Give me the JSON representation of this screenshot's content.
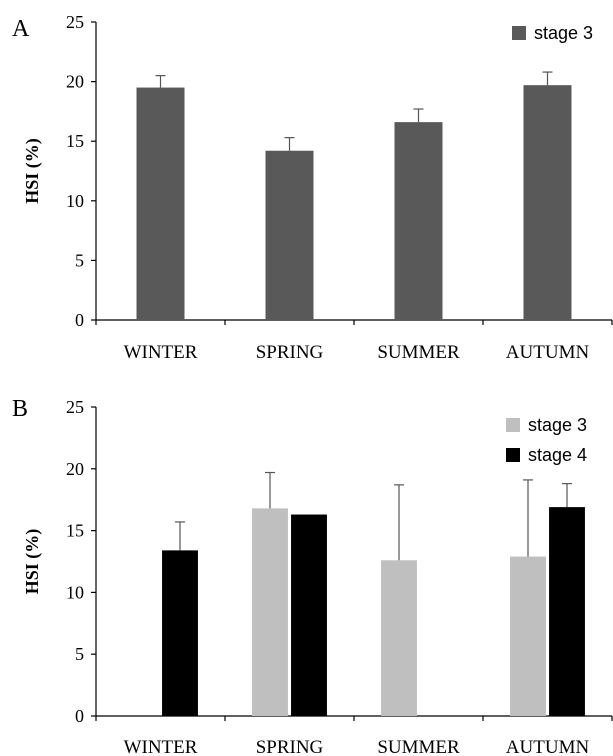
{
  "chart_data": [
    {
      "panel_label": "A",
      "type": "bar",
      "categories": [
        "WINTER",
        "SPRING",
        "SUMMER",
        "AUTUMN"
      ],
      "series": [
        {
          "name": "stage 3",
          "color": "#595959",
          "values": [
            19.5,
            14.2,
            16.6,
            19.7
          ],
          "errors": [
            1.0,
            1.1,
            1.1,
            1.1
          ]
        }
      ],
      "ylabel": "HSI (%)",
      "ylim": [
        0,
        25
      ],
      "yticks": [
        0,
        5,
        10,
        15,
        20,
        25
      ],
      "grid": false,
      "legend": "top-right"
    },
    {
      "panel_label": "B",
      "type": "bar",
      "categories": [
        "WINTER",
        "SPRING",
        "SUMMER",
        "AUTUMN"
      ],
      "series": [
        {
          "name": "stage 3",
          "color": "#bfbfbf",
          "values": [
            null,
            16.8,
            12.6,
            12.9
          ],
          "errors": [
            null,
            2.9,
            6.1,
            6.2
          ]
        },
        {
          "name": "stage 4",
          "color": "#000000",
          "values": [
            13.4,
            16.3,
            null,
            16.9
          ],
          "errors": [
            2.3,
            0,
            null,
            1.9
          ]
        }
      ],
      "ylabel": "HSI (%)",
      "ylim": [
        0,
        25
      ],
      "yticks": [
        0,
        5,
        10,
        15,
        20,
        25
      ],
      "grid": false,
      "legend": "top-right"
    }
  ]
}
